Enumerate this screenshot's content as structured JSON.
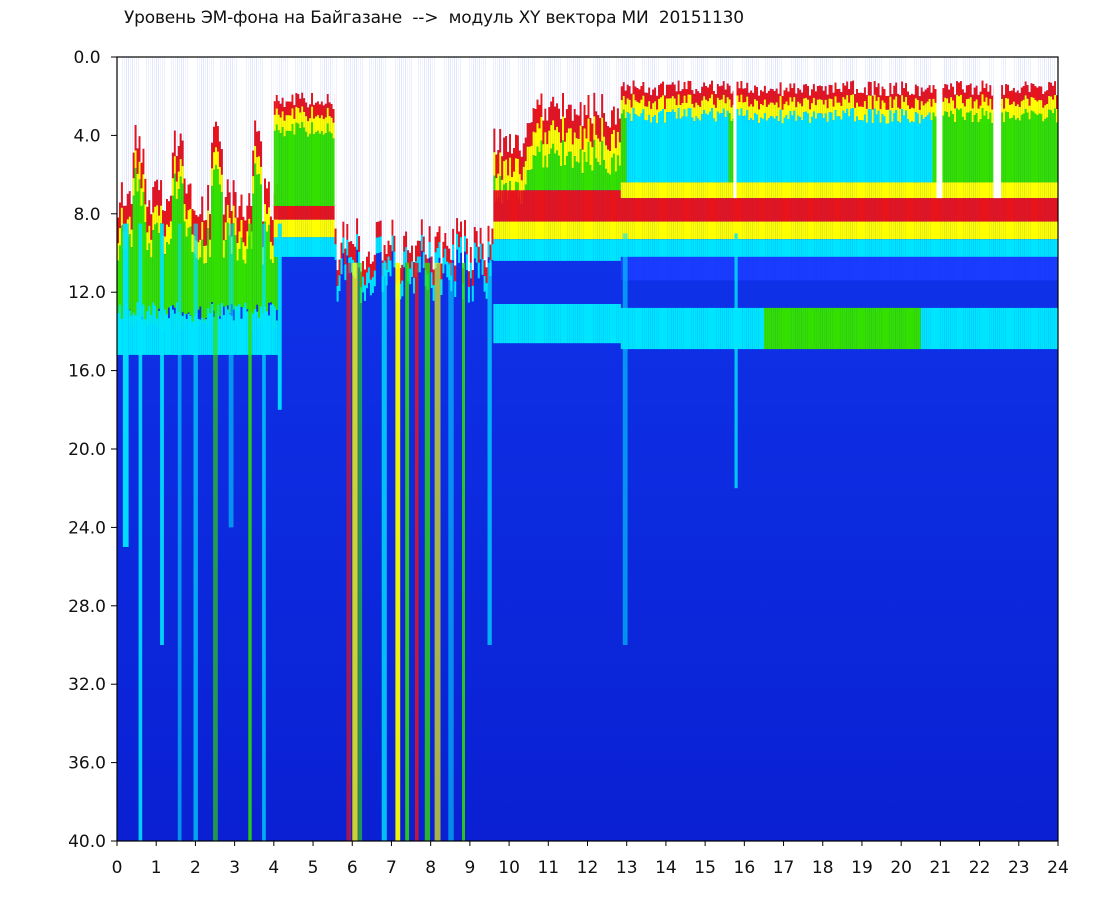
{
  "chart_data": {
    "type": "heatmap",
    "title": "Уровень ЭМ-фона на Байгазане  -->  модуль XY вектора МИ  20151130",
    "xlabel": "",
    "ylabel": "",
    "x_ticks": [
      "0",
      "1",
      "2",
      "3",
      "4",
      "5",
      "6",
      "7",
      "8",
      "9",
      "10",
      "11",
      "12",
      "13",
      "14",
      "15",
      "16",
      "17",
      "18",
      "19",
      "20",
      "21",
      "22",
      "23",
      "24"
    ],
    "y_ticks": [
      "0.0",
      "4.0",
      "8.0",
      "12.0",
      "16.0",
      "20.0",
      "24.0",
      "28.0",
      "32.0",
      "36.0",
      "40.0"
    ],
    "xlim": [
      0,
      24
    ],
    "ylim": [
      0,
      40
    ],
    "y_axis_inverted": true,
    "colormap": [
      "#ffffff",
      "#e8141c",
      "#ffff00",
      "#33e000",
      "#00e5ff",
      "#1a3cff",
      "#0a1cd8"
    ]
  }
}
